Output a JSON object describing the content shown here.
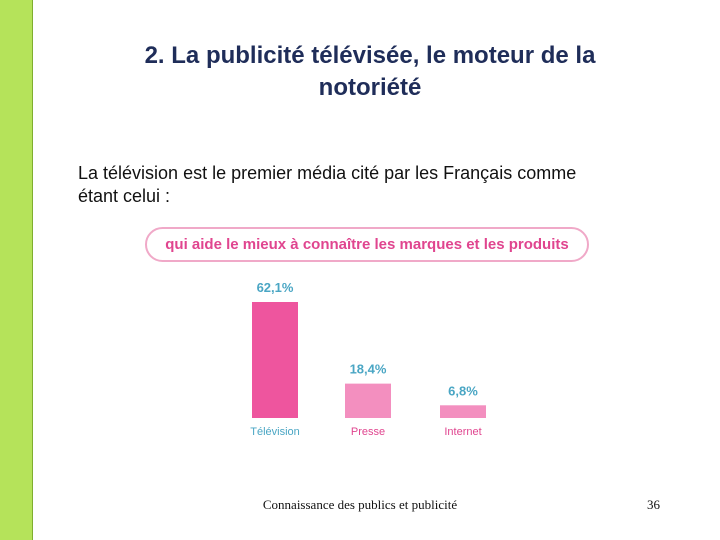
{
  "title": {
    "line1": "2. La publicité télévisée, le moteur de la",
    "line2": "notoriété"
  },
  "intro": {
    "line1": "La télévision est le premier média cité par les Français comme",
    "line2": "étant celui :"
  },
  "footer": {
    "text": "Connaissance des publics et publicité",
    "page_number": "36"
  },
  "colors": {
    "left_bar": "#b5e35a",
    "title": "#1f2d59",
    "pill_text": "#e0458f",
    "bar_primary": "#ee559e",
    "bar_secondary": "#f38fbf",
    "value_label": "#4aa6c4",
    "category_tv": "#4aa6c4",
    "category_other": "#e0458f"
  },
  "chart_data": {
    "type": "bar",
    "title": "qui aide le mieux à connaître les marques et les produits",
    "categories": [
      "Télévision",
      "Presse",
      "Internet"
    ],
    "values": [
      62.1,
      18.4,
      6.8
    ],
    "value_labels": [
      "62,1%",
      "18,4%",
      "6,8%"
    ],
    "unit": "%",
    "ylim": [
      0,
      62.1
    ],
    "grid": false,
    "legend": "none"
  }
}
